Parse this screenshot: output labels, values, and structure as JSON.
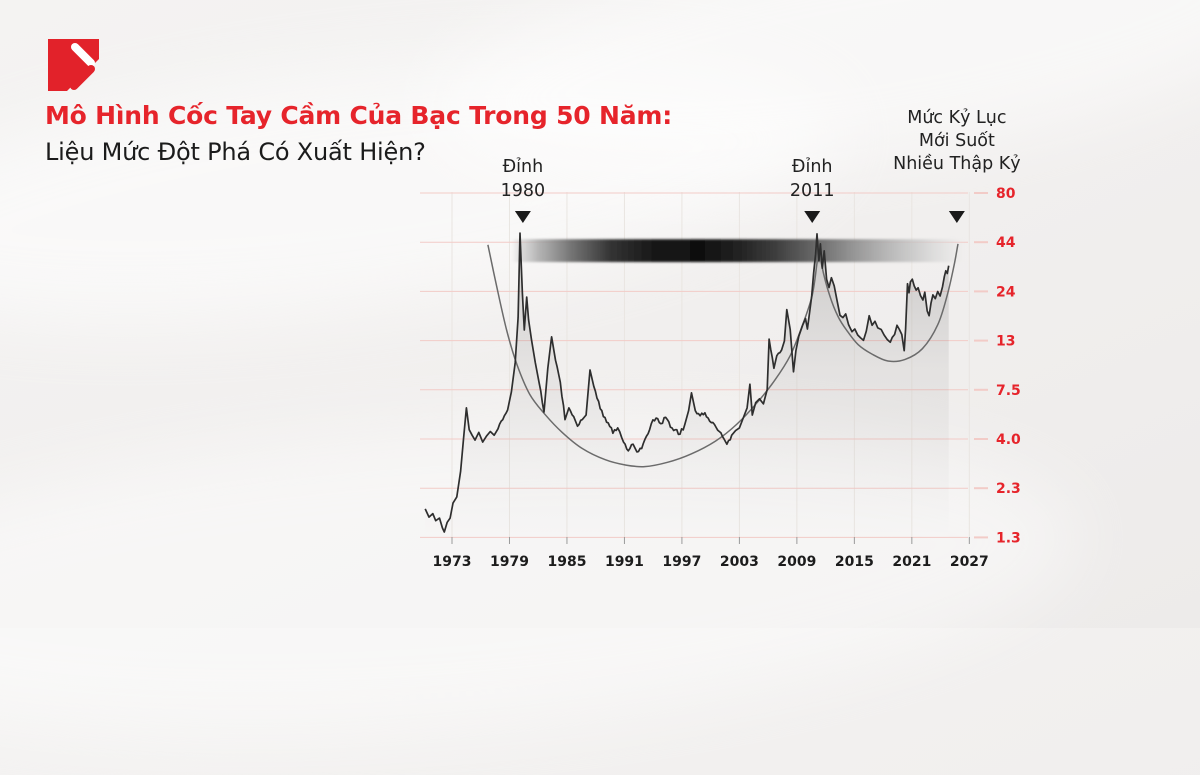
{
  "brand": {
    "logo_color": "#e2222a"
  },
  "header": {
    "title": "Mô Hình Cốc Tay Cầm Của Bạc Trong 50 Năm:",
    "subtitle": "Liệu Mức Đột Phá Có Xuất Hiện?",
    "title_color": "#e6242b"
  },
  "chart_data": {
    "type": "line",
    "description": "Silver price, ~1970-2025, log scale, with cup-and-handle pattern overlay and resistance zone at the 1980/2011 record level",
    "y_scale": "log",
    "x_ticks": [
      1973,
      1979,
      1985,
      1991,
      1997,
      2003,
      2009,
      2015,
      2021,
      2027
    ],
    "y_ticks": [
      "80",
      "44",
      "24",
      "13",
      "7.5",
      "4.0",
      "2.3",
      "1.3"
    ],
    "colors": {
      "grid_h": "#f2cbc7",
      "grid_v": "#e9e5e1",
      "line": "#2e2e2e",
      "axis_label": "#e6242b",
      "tick_label": "#1c1c1c",
      "overlay": "#6b6b6b",
      "marker": "#1a1a1a",
      "annotation": "#222222"
    },
    "series": [
      {
        "name": "silver-price-usd",
        "points": [
          [
            1970.2,
            1.82
          ],
          [
            1970.6,
            1.65
          ],
          [
            1971.0,
            1.72
          ],
          [
            1971.3,
            1.58
          ],
          [
            1971.7,
            1.63
          ],
          [
            1972.0,
            1.45
          ],
          [
            1972.2,
            1.38
          ],
          [
            1972.5,
            1.55
          ],
          [
            1972.8,
            1.63
          ],
          [
            1973.1,
            1.95
          ],
          [
            1973.5,
            2.1
          ],
          [
            1973.9,
            2.85
          ],
          [
            1974.2,
            4.2
          ],
          [
            1974.5,
            6.1
          ],
          [
            1974.8,
            4.7
          ],
          [
            1975.1,
            4.4
          ],
          [
            1975.4,
            4.15
          ],
          [
            1975.8,
            4.55
          ],
          [
            1976.2,
            4.05
          ],
          [
            1976.6,
            4.35
          ],
          [
            1977.0,
            4.6
          ],
          [
            1977.4,
            4.4
          ],
          [
            1977.8,
            4.75
          ],
          [
            1978.3,
            5.3
          ],
          [
            1978.8,
            5.95
          ],
          [
            1979.2,
            7.4
          ],
          [
            1979.6,
            10.5
          ],
          [
            1979.9,
            18.0
          ],
          [
            1980.1,
            49.5
          ],
          [
            1980.35,
            24.0
          ],
          [
            1980.55,
            15.5
          ],
          [
            1980.8,
            23.0
          ],
          [
            1981.0,
            17.5
          ],
          [
            1981.3,
            13.8
          ],
          [
            1981.7,
            10.5
          ],
          [
            1982.1,
            8.2
          ],
          [
            1982.6,
            5.8
          ],
          [
            1983.0,
            9.8
          ],
          [
            1983.4,
            14.3
          ],
          [
            1983.8,
            10.8
          ],
          [
            1984.3,
            8.3
          ],
          [
            1984.8,
            5.3
          ],
          [
            1985.2,
            6.1
          ],
          [
            1985.7,
            5.5
          ],
          [
            1986.1,
            4.9
          ],
          [
            1986.6,
            5.3
          ],
          [
            1987.0,
            5.6
          ],
          [
            1987.4,
            9.6
          ],
          [
            1987.8,
            7.9
          ],
          [
            1988.3,
            6.6
          ],
          [
            1988.8,
            5.5
          ],
          [
            1989.3,
            5.1
          ],
          [
            1989.8,
            4.5
          ],
          [
            1990.3,
            4.8
          ],
          [
            1990.9,
            4.05
          ],
          [
            1991.4,
            3.65
          ],
          [
            1991.9,
            3.95
          ],
          [
            1992.3,
            3.6
          ],
          [
            1992.8,
            3.75
          ],
          [
            1993.3,
            4.35
          ],
          [
            1993.8,
            5.05
          ],
          [
            1994.3,
            5.4
          ],
          [
            1994.8,
            5.05
          ],
          [
            1995.3,
            5.45
          ],
          [
            1995.8,
            4.85
          ],
          [
            1996.3,
            4.7
          ],
          [
            1996.8,
            4.45
          ],
          [
            1997.3,
            5.0
          ],
          [
            1997.7,
            5.9
          ],
          [
            1998.0,
            7.3
          ],
          [
            1998.4,
            5.9
          ],
          [
            1998.9,
            5.55
          ],
          [
            1999.4,
            5.75
          ],
          [
            1999.9,
            5.2
          ],
          [
            2000.4,
            5.0
          ],
          [
            2000.9,
            4.6
          ],
          [
            2001.4,
            4.2
          ],
          [
            2001.7,
            3.95
          ],
          [
            2002.2,
            4.4
          ],
          [
            2002.6,
            4.65
          ],
          [
            2003.0,
            4.8
          ],
          [
            2003.4,
            5.4
          ],
          [
            2003.8,
            6.1
          ],
          [
            2004.1,
            8.1
          ],
          [
            2004.35,
            5.6
          ],
          [
            2004.7,
            6.5
          ],
          [
            2005.1,
            6.8
          ],
          [
            2005.5,
            6.4
          ],
          [
            2005.9,
            7.6
          ],
          [
            2006.1,
            13.9
          ],
          [
            2006.6,
            9.8
          ],
          [
            2006.9,
            11.4
          ],
          [
            2007.4,
            12.2
          ],
          [
            2007.7,
            13.6
          ],
          [
            2007.95,
            19.8
          ],
          [
            2008.3,
            15.6
          ],
          [
            2008.65,
            9.4
          ],
          [
            2008.9,
            12.1
          ],
          [
            2009.2,
            14.4
          ],
          [
            2009.6,
            16.4
          ],
          [
            2009.9,
            17.8
          ],
          [
            2010.1,
            15.7
          ],
          [
            2010.35,
            19.5
          ],
          [
            2010.55,
            23.3
          ],
          [
            2010.75,
            30.5
          ],
          [
            2010.95,
            38.5
          ],
          [
            2011.1,
            49.0
          ],
          [
            2011.3,
            35.5
          ],
          [
            2011.45,
            43.5
          ],
          [
            2011.65,
            32.5
          ],
          [
            2011.85,
            40.0
          ],
          [
            2012.1,
            28.5
          ],
          [
            2012.35,
            25.8
          ],
          [
            2012.6,
            29.0
          ],
          [
            2012.9,
            26.3
          ],
          [
            2013.2,
            22.0
          ],
          [
            2013.5,
            18.5
          ],
          [
            2013.8,
            18.0
          ],
          [
            2014.1,
            18.8
          ],
          [
            2014.4,
            16.5
          ],
          [
            2014.75,
            15.2
          ],
          [
            2015.05,
            15.7
          ],
          [
            2015.35,
            14.6
          ],
          [
            2015.65,
            14.1
          ],
          [
            2015.95,
            13.7
          ],
          [
            2016.25,
            15.3
          ],
          [
            2016.55,
            18.4
          ],
          [
            2016.85,
            16.4
          ],
          [
            2017.15,
            17.2
          ],
          [
            2017.45,
            15.9
          ],
          [
            2017.8,
            15.6
          ],
          [
            2018.1,
            14.6
          ],
          [
            2018.45,
            13.8
          ],
          [
            2018.75,
            13.4
          ],
          [
            2018.95,
            14.2
          ],
          [
            2019.2,
            14.7
          ],
          [
            2019.45,
            16.4
          ],
          [
            2019.7,
            15.6
          ],
          [
            2019.95,
            14.7
          ],
          [
            2020.2,
            12.1
          ],
          [
            2020.35,
            15.7
          ],
          [
            2020.55,
            27.0
          ],
          [
            2020.7,
            24.2
          ],
          [
            2020.85,
            27.6
          ],
          [
            2021.05,
            28.5
          ],
          [
            2021.25,
            26.3
          ],
          [
            2021.45,
            25.0
          ],
          [
            2021.65,
            25.7
          ],
          [
            2021.9,
            23.4
          ],
          [
            2022.15,
            22.2
          ],
          [
            2022.35,
            24.4
          ],
          [
            2022.6,
            19.5
          ],
          [
            2022.8,
            18.4
          ],
          [
            2023.0,
            21.4
          ],
          [
            2023.2,
            23.6
          ],
          [
            2023.45,
            22.6
          ],
          [
            2023.7,
            24.6
          ],
          [
            2023.95,
            23.3
          ],
          [
            2024.2,
            26.0
          ],
          [
            2024.4,
            29.5
          ],
          [
            2024.55,
            31.5
          ],
          [
            2024.7,
            30.5
          ],
          [
            2024.85,
            33.5
          ]
        ]
      }
    ],
    "overlay": {
      "name": "cup-and-handle-curve",
      "points": [
        [
          1976.75,
          43
        ],
        [
          1977.6,
          27
        ],
        [
          1978.7,
          15.5
        ],
        [
          1979.8,
          10.2
        ],
        [
          1981.1,
          7.2
        ],
        [
          1982.7,
          5.65
        ],
        [
          1984.5,
          4.55
        ],
        [
          1986.6,
          3.75
        ],
        [
          1989.0,
          3.28
        ],
        [
          1991.1,
          3.08
        ],
        [
          1993.1,
          3.02
        ],
        [
          1995.5,
          3.18
        ],
        [
          1998.0,
          3.52
        ],
        [
          2000.5,
          4.1
        ],
        [
          2002.7,
          5.0
        ],
        [
          2004.8,
          6.45
        ],
        [
          2006.7,
          8.5
        ],
        [
          2008.3,
          11.4
        ],
        [
          2009.6,
          16.5
        ],
        [
          2010.6,
          23.5
        ],
        [
          2011.1,
          34.5
        ],
        [
          2011.32,
          42.5
        ],
        [
          2011.6,
          33.5
        ],
        [
          2012.4,
          23.6
        ],
        [
          2013.3,
          18.2
        ],
        [
          2014.3,
          15.2
        ],
        [
          2015.4,
          13.0
        ],
        [
          2016.8,
          11.65
        ],
        [
          2018.5,
          10.7
        ],
        [
          2020.3,
          10.9
        ],
        [
          2022.1,
          12.4
        ],
        [
          2023.7,
          16.5
        ],
        [
          2024.7,
          23.6
        ],
        [
          2025.4,
          33.5
        ],
        [
          2025.82,
          43.5
        ]
      ]
    },
    "resistance_zone": {
      "start_year": 1979.2,
      "end_year": 2026.6,
      "price_top": 46,
      "price_bottom": 35
    },
    "markers": [
      {
        "lines": [
          "Đỉnh",
          "1980"
        ],
        "year": 1980.4
      },
      {
        "lines": [
          "Đỉnh",
          "2011"
        ],
        "year": 2010.6
      },
      {
        "lines": [
          "Mức Kỷ Lục",
          "Mới Suốt",
          "Nhiều Thập Kỷ"
        ],
        "year": 2025.7
      }
    ]
  }
}
